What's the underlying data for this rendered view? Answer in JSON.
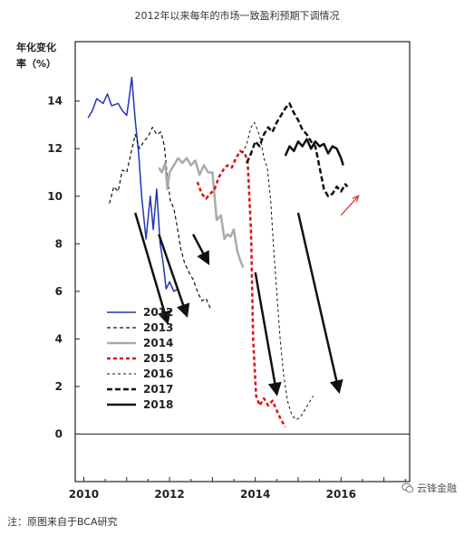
{
  "page": {
    "title": "2012年以来每年的市场一致盈利预期下调情况",
    "note": "注：原图来自于BCA研究",
    "watermark": "云锋金融",
    "watermark_icon": "wechat-icon"
  },
  "chart_data": {
    "type": "line",
    "title": "2012年以来每年的市场一致盈利预期下调情况",
    "ylabel": [
      "年化变化",
      "率（%）"
    ],
    "xlabel": "",
    "xlim": [
      2009.8,
      2017.6
    ],
    "ylim": [
      -2,
      16.5
    ],
    "yticks": [
      0,
      2,
      4,
      6,
      8,
      10,
      12,
      14
    ],
    "xticks": [
      {
        "x": 2010,
        "label": "2010"
      },
      {
        "x": 2012,
        "label": "2012"
      },
      {
        "x": 2014,
        "label": "2014"
      },
      {
        "x": 2016,
        "label": "2016"
      }
    ],
    "legend_position": "lower-left",
    "series": [
      {
        "name": "2012",
        "color": "#2233bb",
        "dash": "solid",
        "width": 1.5,
        "points": [
          [
            2010.1,
            13.3
          ],
          [
            2010.2,
            13.6
          ],
          [
            2010.3,
            14.1
          ],
          [
            2010.45,
            13.9
          ],
          [
            2010.55,
            14.3
          ],
          [
            2010.65,
            13.8
          ],
          [
            2010.8,
            13.9
          ],
          [
            2010.9,
            13.6
          ],
          [
            2011.0,
            13.4
          ],
          [
            2011.05,
            14.0
          ],
          [
            2011.12,
            15.0
          ],
          [
            2011.2,
            13.2
          ],
          [
            2011.28,
            11.8
          ],
          [
            2011.35,
            10.0
          ],
          [
            2011.45,
            8.2
          ],
          [
            2011.55,
            10.0
          ],
          [
            2011.62,
            8.6
          ],
          [
            2011.7,
            10.3
          ],
          [
            2011.78,
            8.0
          ],
          [
            2011.85,
            7.2
          ],
          [
            2011.92,
            6.1
          ],
          [
            2012.0,
            6.4
          ],
          [
            2012.1,
            6.0
          ],
          [
            2012.2,
            6.1
          ],
          [
            2012.28,
            5.6
          ]
        ]
      },
      {
        "name": "2013",
        "color": "#111111",
        "dash": "4,3",
        "width": 1.2,
        "points": [
          [
            2010.6,
            9.7
          ],
          [
            2010.7,
            10.4
          ],
          [
            2010.8,
            10.2
          ],
          [
            2010.9,
            11.1
          ],
          [
            2011.0,
            11.0
          ],
          [
            2011.1,
            11.8
          ],
          [
            2011.2,
            12.6
          ],
          [
            2011.3,
            12.0
          ],
          [
            2011.4,
            12.3
          ],
          [
            2011.5,
            12.5
          ],
          [
            2011.6,
            12.9
          ],
          [
            2011.7,
            12.6
          ],
          [
            2011.8,
            12.7
          ],
          [
            2011.88,
            12.1
          ],
          [
            2011.95,
            10.8
          ],
          [
            2012.02,
            9.8
          ],
          [
            2012.1,
            9.5
          ],
          [
            2012.18,
            8.7
          ],
          [
            2012.26,
            7.8
          ],
          [
            2012.35,
            7.2
          ],
          [
            2012.45,
            6.8
          ],
          [
            2012.55,
            6.5
          ],
          [
            2012.65,
            6.0
          ],
          [
            2012.75,
            5.6
          ],
          [
            2012.85,
            5.7
          ],
          [
            2012.95,
            5.3
          ]
        ]
      },
      {
        "name": "2014",
        "color": "#aaaaaa",
        "dash": "solid",
        "width": 2.5,
        "points": [
          [
            2011.75,
            11.2
          ],
          [
            2011.82,
            11.0
          ],
          [
            2011.9,
            11.4
          ],
          [
            2011.95,
            10.3
          ],
          [
            2012.0,
            11.0
          ],
          [
            2012.1,
            11.3
          ],
          [
            2012.2,
            11.6
          ],
          [
            2012.3,
            11.4
          ],
          [
            2012.4,
            11.6
          ],
          [
            2012.5,
            11.3
          ],
          [
            2012.6,
            11.5
          ],
          [
            2012.7,
            10.9
          ],
          [
            2012.8,
            11.3
          ],
          [
            2012.9,
            11.0
          ],
          [
            2013.0,
            11.0
          ],
          [
            2013.1,
            9.0
          ],
          [
            2013.2,
            9.2
          ],
          [
            2013.28,
            8.2
          ],
          [
            2013.35,
            8.4
          ],
          [
            2013.42,
            8.3
          ],
          [
            2013.5,
            8.6
          ],
          [
            2013.58,
            7.7
          ],
          [
            2013.65,
            7.3
          ],
          [
            2013.72,
            7.0
          ]
        ]
      },
      {
        "name": "2015",
        "color": "#dd1111",
        "dash": "4,3",
        "width": 2.5,
        "points": [
          [
            2012.65,
            10.6
          ],
          [
            2012.75,
            10.1
          ],
          [
            2012.85,
            9.9
          ],
          [
            2012.95,
            10.1
          ],
          [
            2013.05,
            10.3
          ],
          [
            2013.15,
            10.8
          ],
          [
            2013.25,
            11.1
          ],
          [
            2013.35,
            11.3
          ],
          [
            2013.45,
            11.2
          ],
          [
            2013.55,
            11.6
          ],
          [
            2013.65,
            11.9
          ],
          [
            2013.75,
            11.8
          ],
          [
            2013.82,
            11.5
          ],
          [
            2013.9,
            8.5
          ],
          [
            2013.95,
            4.0
          ],
          [
            2014.02,
            1.6
          ],
          [
            2014.1,
            1.2
          ],
          [
            2014.2,
            1.5
          ],
          [
            2014.3,
            1.2
          ],
          [
            2014.4,
            1.4
          ],
          [
            2014.5,
            1.0
          ],
          [
            2014.6,
            0.6
          ],
          [
            2014.7,
            0.3
          ]
        ]
      },
      {
        "name": "2016",
        "color": "#111111",
        "dash": "3,3",
        "width": 1.0,
        "points": [
          [
            2013.7,
            11.8
          ],
          [
            2013.8,
            12.2
          ],
          [
            2013.9,
            12.9
          ],
          [
            2013.98,
            13.1
          ],
          [
            2014.05,
            12.8
          ],
          [
            2014.12,
            12.4
          ],
          [
            2014.2,
            11.6
          ],
          [
            2014.28,
            11.2
          ],
          [
            2014.36,
            9.8
          ],
          [
            2014.42,
            8.0
          ],
          [
            2014.5,
            6.0
          ],
          [
            2014.58,
            4.0
          ],
          [
            2014.66,
            2.5
          ],
          [
            2014.75,
            1.4
          ],
          [
            2014.85,
            0.8
          ],
          [
            2014.95,
            0.6
          ],
          [
            2015.05,
            0.7
          ],
          [
            2015.15,
            1.0
          ],
          [
            2015.25,
            1.3
          ],
          [
            2015.35,
            1.6
          ]
        ]
      },
      {
        "name": "2017",
        "color": "#111111",
        "dash": "6,3",
        "width": 2.5,
        "points": [
          [
            2013.8,
            11.4
          ],
          [
            2013.9,
            11.8
          ],
          [
            2014.0,
            12.3
          ],
          [
            2014.1,
            12.1
          ],
          [
            2014.2,
            12.6
          ],
          [
            2014.3,
            12.9
          ],
          [
            2014.4,
            12.7
          ],
          [
            2014.5,
            13.1
          ],
          [
            2014.6,
            13.4
          ],
          [
            2014.7,
            13.7
          ],
          [
            2014.8,
            13.9
          ],
          [
            2014.9,
            13.5
          ],
          [
            2015.0,
            13.2
          ],
          [
            2015.1,
            12.8
          ],
          [
            2015.2,
            12.6
          ],
          [
            2015.3,
            12.3
          ],
          [
            2015.4,
            12.1
          ],
          [
            2015.5,
            11.2
          ],
          [
            2015.6,
            10.3
          ],
          [
            2015.7,
            10.0
          ],
          [
            2015.8,
            10.1
          ],
          [
            2015.9,
            10.4
          ],
          [
            2016.0,
            10.2
          ],
          [
            2016.1,
            10.5
          ],
          [
            2016.15,
            10.4
          ]
        ]
      },
      {
        "name": "2018",
        "color": "#111111",
        "dash": "solid",
        "width": 2.5,
        "points": [
          [
            2014.7,
            11.7
          ],
          [
            2014.8,
            12.1
          ],
          [
            2014.9,
            11.9
          ],
          [
            2015.0,
            12.3
          ],
          [
            2015.1,
            12.1
          ],
          [
            2015.2,
            12.4
          ],
          [
            2015.3,
            12.0
          ],
          [
            2015.4,
            12.3
          ],
          [
            2015.5,
            12.1
          ],
          [
            2015.6,
            12.2
          ],
          [
            2015.7,
            11.8
          ],
          [
            2015.8,
            12.1
          ],
          [
            2015.9,
            12.0
          ],
          [
            2016.0,
            11.6
          ],
          [
            2016.05,
            11.3
          ]
        ]
      }
    ],
    "annotations": {
      "down_arrows": [
        {
          "from": [
            2011.2,
            9.3
          ],
          "to": [
            2011.95,
            4.7
          ],
          "color": "#111111"
        },
        {
          "from": [
            2011.75,
            8.4
          ],
          "to": [
            2012.4,
            5.0
          ],
          "color": "#111111"
        },
        {
          "from": [
            2012.55,
            8.4
          ],
          "to": [
            2012.9,
            7.2
          ],
          "color": "#111111"
        },
        {
          "from": [
            2014.0,
            6.8
          ],
          "to": [
            2014.5,
            1.7
          ],
          "color": "#111111"
        },
        {
          "from": [
            2015.0,
            9.3
          ],
          "to": [
            2015.95,
            1.8
          ],
          "color": "#111111"
        }
      ],
      "up_arrows": [
        {
          "from": [
            2016.0,
            9.2
          ],
          "to": [
            2016.4,
            10.0
          ],
          "color": "#dd3333"
        }
      ]
    }
  }
}
